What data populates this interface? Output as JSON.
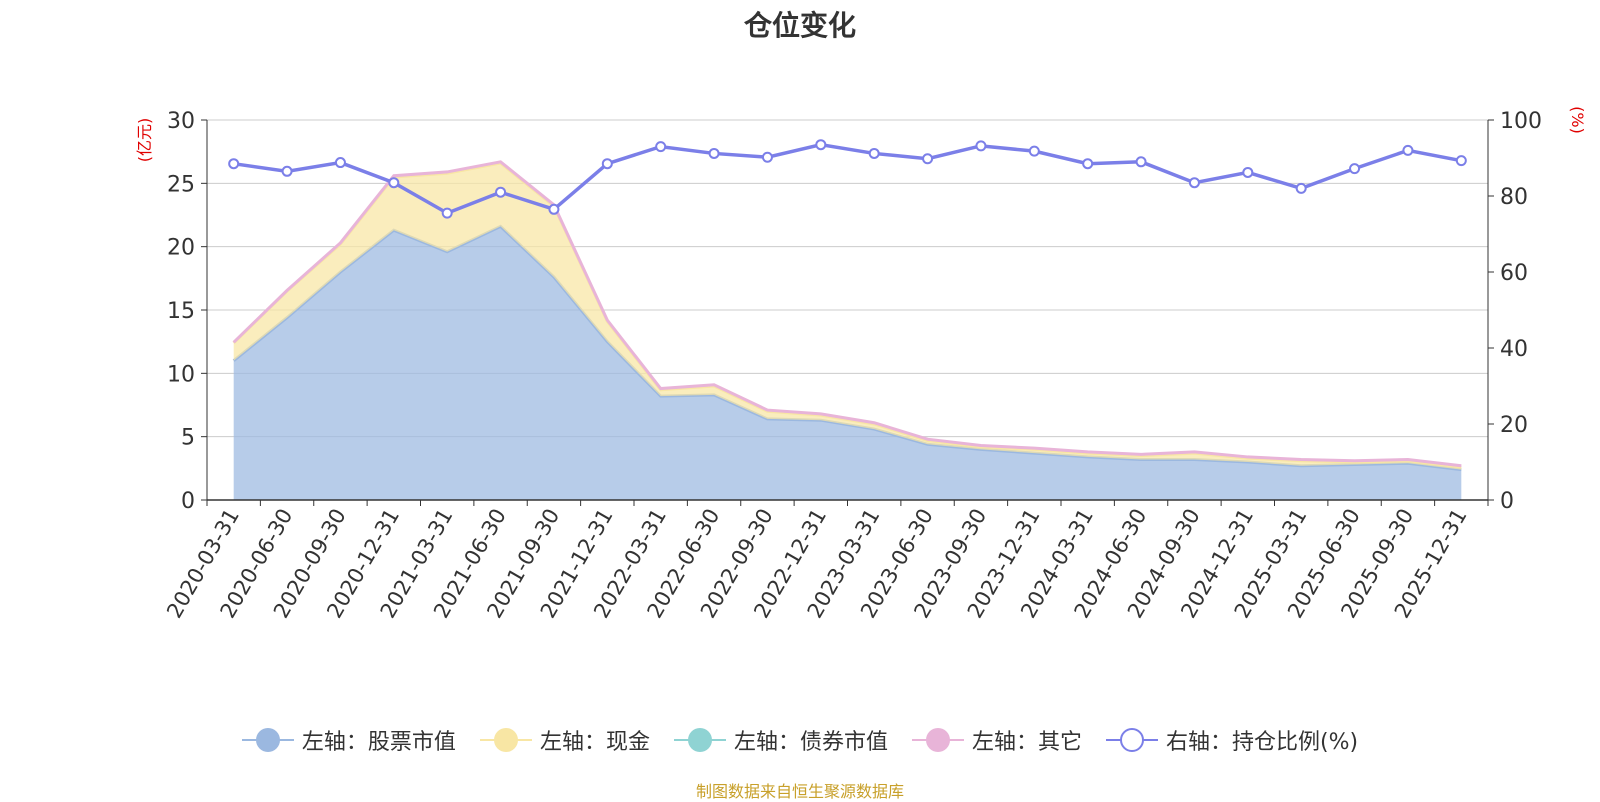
{
  "chart_data": {
    "type": "area",
    "title": "仓位变化",
    "source_note": "制图数据来自恒生聚源数据库",
    "left_axis": {
      "label": "(亿元)",
      "ylim": [
        0,
        30
      ],
      "ticks": [
        "0",
        "5",
        "10",
        "15",
        "20",
        "25",
        "30"
      ]
    },
    "right_axis": {
      "label": "(%)",
      "ylim": [
        0,
        100
      ],
      "ticks": [
        "0",
        "20",
        "40",
        "60",
        "80",
        "100"
      ]
    },
    "categories": [
      "2020-03-31",
      "2020-06-30",
      "2020-09-30",
      "2020-12-31",
      "2021-03-31",
      "2021-06-30",
      "2021-09-30",
      "2021-12-31",
      "2022-03-31",
      "2022-06-30",
      "2022-09-30",
      "2022-12-31",
      "2023-03-31",
      "2023-06-30",
      "2023-09-30",
      "2023-12-31",
      "2024-03-31",
      "2024-06-30",
      "2024-09-30",
      "2024-12-31",
      "2025-03-31",
      "2025-06-30",
      "2025-09-30",
      "2025-12-31"
    ],
    "series": [
      {
        "name": "左轴：股票市值",
        "axis": "left",
        "stack": true,
        "color": "#9bb8e0",
        "values": [
          11.0,
          14.4,
          18.0,
          21.3,
          19.6,
          21.6,
          17.6,
          12.5,
          8.2,
          8.3,
          6.4,
          6.3,
          5.6,
          4.4,
          4.0,
          3.7,
          3.4,
          3.2,
          3.2,
          3.0,
          2.7,
          2.8,
          2.9,
          2.4
        ]
      },
      {
        "name": "左轴：现金",
        "axis": "left",
        "stack": true,
        "color": "#f8e6a4",
        "values": [
          1.4,
          2.1,
          2.2,
          4.2,
          6.2,
          5.0,
          5.6,
          1.6,
          0.5,
          0.7,
          0.6,
          0.4,
          0.4,
          0.3,
          0.2,
          0.3,
          0.3,
          0.3,
          0.5,
          0.3,
          0.4,
          0.2,
          0.2,
          0.2
        ]
      },
      {
        "name": "左轴：债券市值",
        "axis": "left",
        "stack": true,
        "color": "#8fd3d3",
        "values": [
          0,
          0,
          0,
          0,
          0,
          0,
          0,
          0,
          0,
          0,
          0,
          0,
          0,
          0,
          0,
          0,
          0,
          0,
          0,
          0,
          0,
          0,
          0,
          0
        ]
      },
      {
        "name": "左轴：其它",
        "axis": "left",
        "stack": true,
        "color": "#e8b4d8",
        "values": [
          0.05,
          0.05,
          0.1,
          0.1,
          0.1,
          0.1,
          0.1,
          0.1,
          0.1,
          0.1,
          0.1,
          0.1,
          0.1,
          0.1,
          0.1,
          0.1,
          0.1,
          0.1,
          0.1,
          0.1,
          0.1,
          0.1,
          0.1,
          0.1
        ]
      },
      {
        "name": "右轴：持仓比例(%)",
        "axis": "right",
        "stack": false,
        "color": "#7b7fe8",
        "values": [
          88.5,
          86.5,
          88.8,
          83.5,
          75.5,
          81.0,
          76.5,
          88.5,
          93.0,
          91.2,
          90.2,
          93.5,
          91.2,
          89.8,
          93.2,
          91.8,
          88.5,
          89.0,
          83.5,
          86.2,
          82.0,
          87.2,
          92.0,
          89.3
        ]
      }
    ]
  }
}
